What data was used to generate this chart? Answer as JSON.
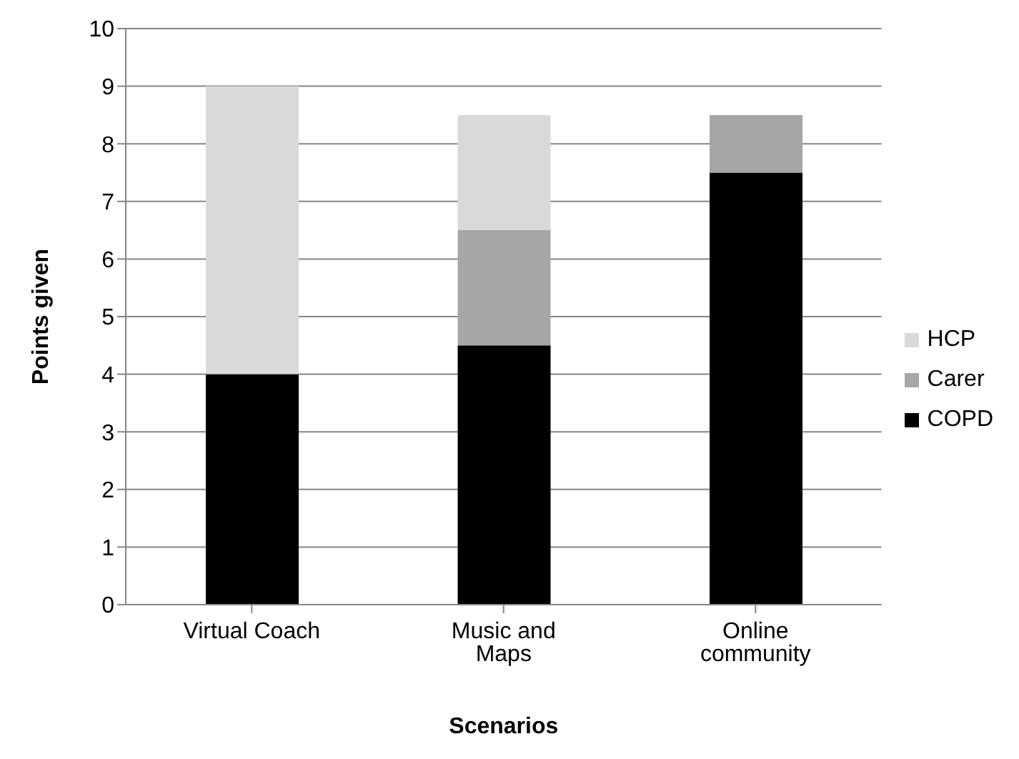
{
  "chart_data": {
    "type": "bar",
    "stacked": true,
    "xlabel": "Scenarios",
    "ylabel": "Points given",
    "categories": [
      "Virtual Coach",
      "Music and Maps",
      "Online community"
    ],
    "series": [
      {
        "name": "COPD",
        "color": "#000000",
        "values": [
          4,
          4.5,
          7.5
        ]
      },
      {
        "name": "Carer",
        "color": "#a6a6a6",
        "values": [
          0,
          2,
          1
        ]
      },
      {
        "name": "HCP",
        "color": "#d9d9d9",
        "values": [
          5,
          2,
          0
        ]
      }
    ],
    "ylim": [
      0,
      10
    ],
    "yticks": [
      0,
      1,
      2,
      3,
      4,
      5,
      6,
      7,
      8,
      9,
      10
    ],
    "grid": "y",
    "legend": "right"
  }
}
